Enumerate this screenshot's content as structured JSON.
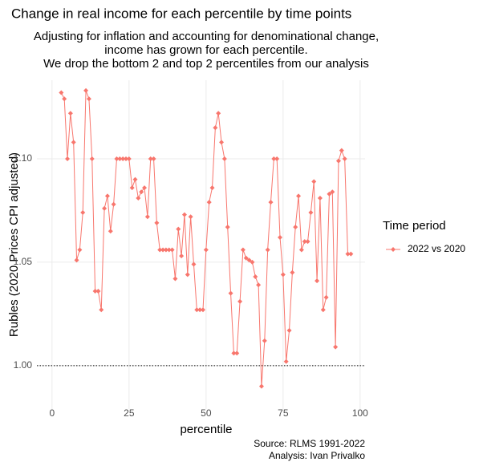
{
  "chart_data": {
    "type": "line",
    "title": "Change in real income for each percentile by time points",
    "subtitle": [
      "Adjusting for inflation and accounting for denominational change,",
      "income has grown for each percentile.",
      "We drop the bottom 2 and top 2 percentiles from our analysis"
    ],
    "x_label": "percentile",
    "y_label": "Rubles (2020 Prices CPI adjusted)",
    "caption": [
      "Source: RLMS 1991-2022",
      "Analysis: Ivan Privalko"
    ],
    "legend_title": "Time period",
    "legend_position": "right",
    "grid": true,
    "hline": 1.0,
    "xlim": [
      -4.9,
      101.6
    ],
    "ylim": [
      0.979,
      1.138
    ],
    "xticks": [
      0,
      25,
      50,
      75,
      100
    ],
    "yticks": [
      {
        "value": 1.0,
        "label": "1.00"
      },
      {
        "value": 1.05,
        "label": "1.05"
      },
      {
        "value": 1.1,
        "label": "1.10"
      }
    ],
    "x": [
      3,
      4,
      5,
      6,
      7,
      8,
      9,
      10,
      11,
      12,
      13,
      14,
      15,
      16,
      17,
      18,
      19,
      20,
      21,
      22,
      23,
      24,
      25,
      26,
      27,
      28,
      29,
      30,
      31,
      32,
      33,
      34,
      35,
      36,
      37,
      38,
      39,
      40,
      41,
      42,
      43,
      44,
      45,
      46,
      47,
      48,
      49,
      50,
      51,
      52,
      53,
      54,
      55,
      56,
      57,
      58,
      59,
      60,
      61,
      62,
      63,
      64,
      65,
      66,
      67,
      68,
      69,
      70,
      71,
      72,
      73,
      74,
      75,
      76,
      77,
      78,
      79,
      80,
      81,
      82,
      83,
      84,
      85,
      86,
      87,
      88,
      89,
      90,
      91,
      92,
      93,
      94,
      95,
      96,
      97
    ],
    "series": [
      {
        "name": "2022 vs 2020",
        "color": "#F8766D",
        "values": [
          1.132,
          1.129,
          1.1,
          1.122,
          1.108,
          1.051,
          1.056,
          1.074,
          1.133,
          1.129,
          1.1,
          1.036,
          1.036,
          1.027,
          1.076,
          1.082,
          1.065,
          1.078,
          1.1,
          1.1,
          1.1,
          1.1,
          1.1,
          1.086,
          1.09,
          1.081,
          1.084,
          1.086,
          1.072,
          1.1,
          1.1,
          1.069,
          1.056,
          1.056,
          1.056,
          1.056,
          1.056,
          1.042,
          1.066,
          1.053,
          1.073,
          1.044,
          1.072,
          1.049,
          1.027,
          1.027,
          1.027,
          1.056,
          1.079,
          1.086,
          1.115,
          1.122,
          1.108,
          1.1,
          1.067,
          1.035,
          1.006,
          1.006,
          1.031,
          1.056,
          1.052,
          1.051,
          1.05,
          1.043,
          1.039,
          0.99,
          1.012,
          1.056,
          1.079,
          1.1,
          1.1,
          1.062,
          1.044,
          1.002,
          1.017,
          1.045,
          1.067,
          1.082,
          1.056,
          1.06,
          1.06,
          1.074,
          1.089,
          1.041,
          1.081,
          1.027,
          1.033,
          1.083,
          1.084,
          1.009,
          1.099,
          1.104,
          1.1,
          1.054,
          1.054
        ]
      }
    ]
  }
}
